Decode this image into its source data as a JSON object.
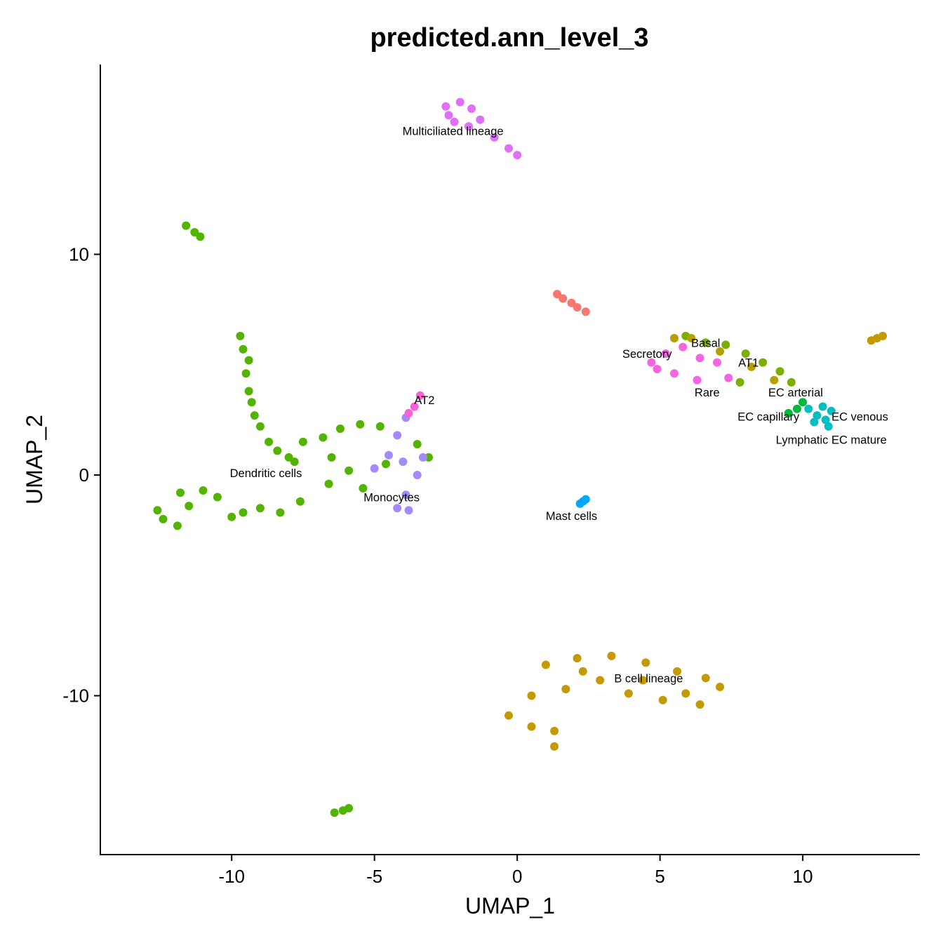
{
  "chart_data": {
    "type": "scatter",
    "title": "predicted.ann_level_3",
    "xlabel": "UMAP_1",
    "ylabel": "UMAP_2",
    "xlim": [
      -14.6,
      14.1
    ],
    "ylim": [
      -17.2,
      18.6
    ],
    "x_ticks": [
      -10,
      -5,
      0,
      5,
      10
    ],
    "y_ticks": [
      -10,
      0,
      10
    ],
    "x_tick_labels": [
      "-10",
      "-5",
      "0",
      "5",
      "10"
    ],
    "y_tick_labels": [
      "-10",
      "0",
      "10"
    ],
    "grid": false,
    "legend": "none",
    "clusters": [
      {
        "id": "dendritic-blob",
        "color": "#53B400",
        "points": [
          [
            -12.6,
            -1.6
          ],
          [
            -11.5,
            -1.4
          ],
          [
            -10.5,
            -1.0
          ],
          [
            -10,
            -1.9
          ],
          [
            -11.9,
            -2.3
          ],
          [
            -12.4,
            -2.0
          ],
          [
            -11.0,
            -0.7
          ],
          [
            -11.8,
            -0.8
          ]
        ]
      },
      {
        "id": "dendritic-stalk",
        "color": "#53B400",
        "points": [
          [
            -9.7,
            6.3
          ],
          [
            -9.6,
            5.7
          ],
          [
            -9.4,
            5.2
          ],
          [
            -9.5,
            4.6
          ],
          [
            -9.4,
            3.8
          ],
          [
            -9.3,
            3.3
          ],
          [
            -9.2,
            2.7
          ],
          [
            -9.0,
            2.2
          ],
          [
            -8.7,
            1.5
          ],
          [
            -8.4,
            1.1
          ],
          [
            -8.0,
            0.8
          ],
          [
            -7.8,
            0.6
          ]
        ]
      },
      {
        "id": "dendritic-arm",
        "color": "#53B400",
        "points": [
          [
            -7.5,
            1.5
          ],
          [
            -6.8,
            1.7
          ],
          [
            -6.2,
            2.1
          ],
          [
            -5.5,
            2.3
          ],
          [
            -4.8,
            2.2
          ],
          [
            -6.5,
            0.8
          ],
          [
            -5.9,
            0.2
          ],
          [
            -5.4,
            -0.6
          ],
          [
            -6.6,
            -0.4
          ],
          [
            -7.6,
            -1.2
          ],
          [
            -8.3,
            -1.7
          ],
          [
            -9.0,
            -1.5
          ],
          [
            -9.6,
            -1.7
          ],
          [
            -4.6,
            0.5
          ],
          [
            -3.5,
            1.4
          ],
          [
            -3.1,
            0.8
          ]
        ]
      },
      {
        "id": "dendritic-small-top",
        "color": "#53B400",
        "points": [
          [
            -11.6,
            11.3
          ],
          [
            -11.3,
            11.0
          ],
          [
            -11.1,
            10.8
          ]
        ]
      },
      {
        "id": "dendritic-small-bottom",
        "color": "#53B400",
        "points": [
          [
            -6.4,
            -15.3
          ],
          [
            -6.1,
            -15.2
          ],
          [
            -5.9,
            -15.1
          ]
        ]
      },
      {
        "id": "monocytes",
        "color": "#A58AFF",
        "points": [
          [
            -4.5,
            0.9
          ],
          [
            -4.2,
            1.8
          ],
          [
            -4.0,
            0.6
          ],
          [
            -3.9,
            -0.9
          ],
          [
            -4.2,
            -1.5
          ],
          [
            -3.8,
            -1.6
          ],
          [
            -3.5,
            0.0
          ],
          [
            -3.3,
            0.8
          ],
          [
            -3.9,
            2.6
          ],
          [
            -5.0,
            0.3
          ]
        ]
      },
      {
        "id": "at2",
        "color": "#FB61D7",
        "points": [
          [
            -3.6,
            3.1
          ],
          [
            -3.4,
            3.6
          ],
          [
            -3.8,
            2.8
          ]
        ]
      },
      {
        "id": "multiciliated",
        "color": "#DF70F8",
        "points": [
          [
            -2.5,
            16.7
          ],
          [
            -2.0,
            16.9
          ],
          [
            -1.6,
            16.6
          ],
          [
            -1.3,
            16.1
          ],
          [
            -1.7,
            15.8
          ],
          [
            -2.2,
            16.0
          ],
          [
            -0.8,
            15.3
          ],
          [
            -0.3,
            14.8
          ],
          [
            0.0,
            14.5
          ],
          [
            -2.4,
            16.3
          ]
        ]
      },
      {
        "id": "small-pink-strip",
        "color": "#F8766D",
        "points": [
          [
            1.4,
            8.2
          ],
          [
            1.6,
            8.0
          ],
          [
            1.9,
            7.8
          ],
          [
            2.1,
            7.6
          ],
          [
            2.4,
            7.4
          ]
        ]
      },
      {
        "id": "mast",
        "color": "#00A9FF",
        "points": [
          [
            2.3,
            -1.2
          ],
          [
            2.4,
            -1.1
          ],
          [
            2.2,
            -1.3
          ]
        ]
      },
      {
        "id": "secretory-at1",
        "color": "#F564E3",
        "points": [
          [
            4.7,
            5.1
          ],
          [
            5.2,
            5.5
          ],
          [
            5.8,
            5.8
          ],
          [
            6.4,
            5.3
          ],
          [
            7.0,
            5.1
          ],
          [
            5.5,
            4.6
          ],
          [
            6.3,
            4.3
          ],
          [
            7.4,
            4.4
          ],
          [
            4.9,
            4.8
          ]
        ]
      },
      {
        "id": "basal-at1-olive",
        "color": "#7CAE00",
        "points": [
          [
            5.9,
            6.3
          ],
          [
            6.6,
            6.0
          ],
          [
            7.3,
            5.9
          ],
          [
            8.0,
            5.5
          ],
          [
            8.6,
            5.1
          ],
          [
            9.2,
            4.7
          ],
          [
            9.6,
            4.2
          ],
          [
            7.8,
            4.2
          ]
        ]
      },
      {
        "id": "basal-at1-gold",
        "color": "#B79F00",
        "points": [
          [
            6.1,
            6.2
          ],
          [
            7.1,
            5.6
          ],
          [
            8.2,
            4.9
          ],
          [
            9.0,
            4.3
          ],
          [
            5.5,
            6.2
          ]
        ]
      },
      {
        "id": "ec-venous",
        "color": "#00BFC4",
        "points": [
          [
            10.2,
            3.0
          ],
          [
            10.5,
            2.7
          ],
          [
            10.8,
            2.5
          ],
          [
            11.0,
            2.9
          ],
          [
            10.9,
            2.2
          ],
          [
            10.4,
            2.4
          ],
          [
            10.7,
            3.1
          ]
        ]
      },
      {
        "id": "ec-capillary",
        "color": "#00BA38",
        "points": [
          [
            9.8,
            3.0
          ],
          [
            10.0,
            3.3
          ],
          [
            9.5,
            2.8
          ]
        ]
      },
      {
        "id": "b-cell",
        "color": "#C49A00",
        "points": [
          [
            1.0,
            -8.6
          ],
          [
            2.1,
            -8.3
          ],
          [
            3.3,
            -8.2
          ],
          [
            4.5,
            -8.5
          ],
          [
            5.6,
            -8.9
          ],
          [
            6.6,
            -9.2
          ],
          [
            7.1,
            -9.6
          ],
          [
            6.4,
            -10.4
          ],
          [
            5.1,
            -10.2
          ],
          [
            3.9,
            -9.9
          ],
          [
            2.9,
            -9.3
          ],
          [
            1.7,
            -9.7
          ],
          [
            0.5,
            -10.0
          ],
          [
            -0.3,
            -10.9
          ],
          [
            0.5,
            -11.4
          ],
          [
            1.3,
            -11.6
          ],
          [
            1.3,
            -12.3
          ],
          [
            2.3,
            -8.9
          ],
          [
            4.4,
            -9.3
          ],
          [
            5.9,
            -9.9
          ]
        ]
      },
      {
        "id": "far-right-spot",
        "color": "#C49A00",
        "points": [
          [
            12.4,
            6.1
          ],
          [
            12.6,
            6.2
          ],
          [
            12.8,
            6.3
          ]
        ]
      }
    ],
    "labels": [
      {
        "text": "Multiciliated lineage",
        "x": -2.25,
        "y": 15.6
      },
      {
        "text": "AT2",
        "x": -3.25,
        "y": 3.4
      },
      {
        "text": "Dendritic cells",
        "x": -8.8,
        "y": 0.1
      },
      {
        "text": "Monocytes",
        "x": -4.4,
        "y": -1.0
      },
      {
        "text": "Mast cells",
        "x": 1.9,
        "y": -1.85
      },
      {
        "text": "Secretory",
        "x": 4.55,
        "y": 5.5
      },
      {
        "text": "Basal",
        "x": 6.6,
        "y": 6.0
      },
      {
        "text": "AT1",
        "x": 8.1,
        "y": 5.1
      },
      {
        "text": "Rare",
        "x": 6.65,
        "y": 3.75
      },
      {
        "text": "EC arterial",
        "x": 9.75,
        "y": 3.75
      },
      {
        "text": "EC capillary",
        "x": 8.8,
        "y": 2.65
      },
      {
        "text": "EC venous",
        "x": 12.0,
        "y": 2.65
      },
      {
        "text": "Lymphatic EC mature",
        "x": 11.0,
        "y": 1.6
      },
      {
        "text": "B cell lineage",
        "x": 4.6,
        "y": -9.2
      }
    ]
  }
}
